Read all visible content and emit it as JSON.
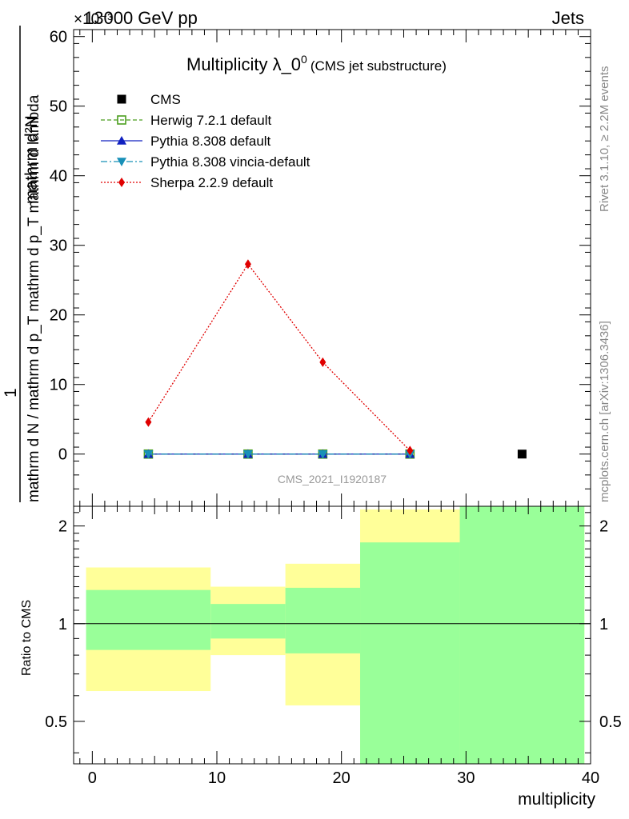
{
  "header": {
    "left": "13000 GeV pp",
    "right": "Jets",
    "exponent": "×10⁻³"
  },
  "side_text": {
    "rivet": "Rivet 3.1.10, ≥ 2.2M events",
    "mcplots": "mcplots.cern.ch [arXiv:1306.3436]"
  },
  "chart_data": [
    {
      "type": "line",
      "title_main": "Multiplicity λ_0",
      "title_sup": "0",
      "title_sub": "(CMS jet substructure)",
      "watermark": "CMS_2021_I1920187",
      "ylabel_numerator": "mathrm d²N",
      "ylabel_denominator": "mathrm d N / mathrm d p_T mathrm d p_T mathrm d lambda",
      "ylabel_prefix": "1",
      "y_scale_note": "×10⁻³",
      "xlim": [
        -1.5,
        40
      ],
      "ylim": [
        -7.5,
        61
      ],
      "yticks": [
        0,
        10,
        20,
        30,
        40,
        50,
        60
      ],
      "xticks": [
        0,
        10,
        20,
        30,
        40
      ],
      "series": [
        {
          "name": "CMS",
          "style": "marker-square",
          "color": "#000000",
          "x": [
            34.5
          ],
          "y": [
            0
          ]
        },
        {
          "name": "Herwig 7.2.1 default",
          "style": "dashed-open-square",
          "color": "#4b9e1e",
          "x": [
            4.5,
            12.5,
            18.5,
            25.5
          ],
          "y": [
            0,
            0,
            0,
            0
          ]
        },
        {
          "name": "Pythia 8.308 default",
          "style": "solid-triangle-up",
          "color": "#1020c0",
          "x": [
            4.5,
            12.5,
            18.5,
            25.5
          ],
          "y": [
            0,
            0,
            0,
            0
          ]
        },
        {
          "name": "Pythia 8.308 vincia-default",
          "style": "dashdot-triangle-down",
          "color": "#1890b8",
          "x": [
            4.5,
            12.5,
            18.5,
            25.5
          ],
          "y": [
            0,
            0,
            0,
            0
          ]
        },
        {
          "name": "Sherpa 2.2.9 default",
          "style": "dotted-diamond",
          "color": "#e00000",
          "x": [
            4.5,
            12.5,
            18.5,
            25.5
          ],
          "y": [
            4.6,
            27.3,
            13.2,
            0.5
          ]
        }
      ]
    },
    {
      "type": "area",
      "ylabel": "Ratio to CMS",
      "xlabel": "multiplicity",
      "xlim": [
        -1.5,
        40
      ],
      "ylim": [
        0.37,
        2.3
      ],
      "yticks": [
        0.5,
        1,
        2
      ],
      "yticklabels": [
        "0.5",
        "1",
        "2"
      ],
      "reference_line": 1,
      "bands": [
        {
          "x0": -0.5,
          "x1": 9.5,
          "yellow": [
            0.62,
            1.49
          ],
          "green": [
            0.83,
            1.27
          ]
        },
        {
          "x0": 9.5,
          "x1": 15.5,
          "yellow": [
            0.8,
            1.3
          ],
          "green": [
            0.9,
            1.15
          ]
        },
        {
          "x0": 15.5,
          "x1": 21.5,
          "yellow": [
            0.56,
            1.53
          ],
          "green": [
            0.81,
            1.29
          ]
        },
        {
          "x0": 21.5,
          "x1": 29.5,
          "yellow": [
            0.37,
            2.25
          ],
          "green": [
            0.37,
            1.78
          ]
        },
        {
          "x0": 29.5,
          "x1": 39.5,
          "yellow": [
            0.37,
            2.3
          ],
          "green": [
            0.37,
            2.3
          ]
        }
      ]
    }
  ]
}
